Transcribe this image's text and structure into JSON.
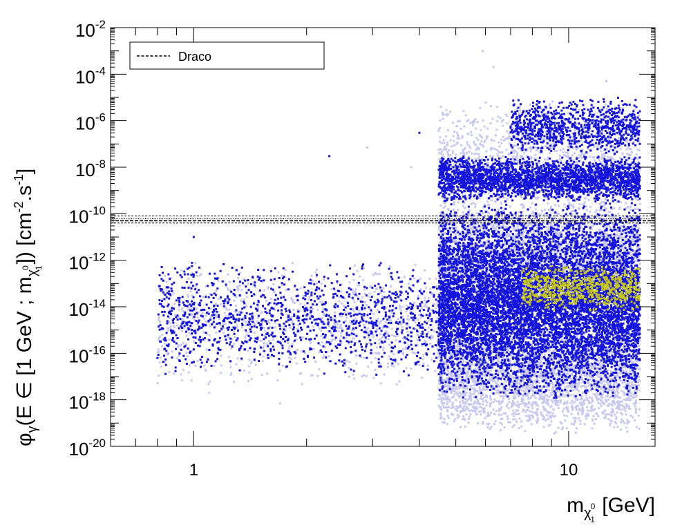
{
  "chart_data": {
    "type": "scatter",
    "xscale": "log",
    "yscale": "log",
    "xlim": [
      0.6,
      17
    ],
    "ylim": [
      1e-20,
      0.01
    ],
    "xticks": [
      {
        "value": 1,
        "label": "1"
      },
      {
        "value": 10,
        "label": "10"
      }
    ],
    "yticks": [
      {
        "value": 1e-20,
        "base": "10",
        "exp": "-20"
      },
      {
        "value": 1e-18,
        "base": "10",
        "exp": "-18"
      },
      {
        "value": 1e-16,
        "base": "10",
        "exp": "-16"
      },
      {
        "value": 1e-14,
        "base": "10",
        "exp": "-14"
      },
      {
        "value": 1e-12,
        "base": "10",
        "exp": "-12"
      },
      {
        "value": 1e-10,
        "base": "10",
        "exp": "-10"
      },
      {
        "value": 1e-08,
        "base": "10",
        "exp": "-8"
      },
      {
        "value": 1e-06,
        "base": "10",
        "exp": "-6"
      },
      {
        "value": 0.0001,
        "base": "10",
        "exp": "-4"
      },
      {
        "value": 0.01,
        "base": "10",
        "exp": "-2"
      }
    ],
    "xlabel": {
      "main": "m",
      "sub": "χ",
      "subsup": "0",
      "subsub": "1",
      "suffix": " [GeV]"
    },
    "ylabel": {
      "p1": "φ",
      "p1sub": "γ",
      "p2": "(E ∈ [1 GeV ; m",
      "p2sub": "χ",
      "p2subsup": "0",
      "p2subsub": "1",
      "p3": "]) [cm",
      "p3sup": "-2",
      "p4": ".s",
      "p4sup": "-1",
      "p5": "]"
    },
    "legend": {
      "position": "top-left",
      "entries": [
        {
          "label": "Draco",
          "style": "dashed-line"
        }
      ]
    },
    "reference_line": {
      "name": "Draco",
      "y_central": 5e-11,
      "y_band": [
        4e-11,
        8e-11
      ],
      "color": "#000000"
    },
    "series": [
      {
        "color": "#c8c8f0",
        "clusters": [
          {
            "x": [
              0.8,
              4.5
            ],
            "logy": [
              -17.5,
              -12.0
            ],
            "n": 900
          },
          {
            "x": [
              4.5,
              15.5
            ],
            "logy": [
              -19.5,
              -14.5
            ],
            "n": 3000
          },
          {
            "x": [
              4.5,
              15.5
            ],
            "logy": [
              -14.5,
              -9.0
            ],
            "n": 3000
          },
          {
            "x": [
              4.5,
              15.5
            ],
            "logy": [
              -9.5,
              -5.0
            ],
            "n": 900
          }
        ]
      },
      {
        "color": "#1414dc",
        "clusters": [
          {
            "x": [
              0.8,
              4.5
            ],
            "logy": [
              -17.0,
              -12.0
            ],
            "n": 1200
          },
          {
            "x": [
              4.5,
              15.5
            ],
            "logy": [
              -18.0,
              -9.5
            ],
            "n": 9000
          },
          {
            "x": [
              4.5,
              15.5
            ],
            "logy": [
              -9.5,
              -7.5
            ],
            "n": 2500
          },
          {
            "x": [
              7.0,
              15.5
            ],
            "logy": [
              -7.5,
              -5.0
            ],
            "n": 900
          }
        ]
      },
      {
        "color": "#c8c818",
        "clusters": [
          {
            "x": [
              7.5,
              15.5
            ],
            "logy": [
              -14.2,
              -12.2
            ],
            "n": 650
          }
        ]
      }
    ],
    "outliers": [
      {
        "x": 5.9,
        "y": 0.001,
        "color": "#c8c8f0"
      },
      {
        "x": 6.3,
        "y": 0.0002,
        "color": "#c8c8f0"
      },
      {
        "x": 12.6,
        "y": 5e-05,
        "color": "#c8c8f0"
      },
      {
        "x": 2.3,
        "y": 3e-08,
        "color": "#1414dc"
      },
      {
        "x": 2.9,
        "y": 7e-08,
        "color": "#c8c8f0"
      },
      {
        "x": 4.0,
        "y": 3e-07,
        "color": "#1414dc"
      },
      {
        "x": 3.8,
        "y": 1e-08,
        "color": "#c8c8f0"
      },
      {
        "x": 1.1,
        "y": 2e-18,
        "color": "#c8c8f0"
      },
      {
        "x": 1.7,
        "y": 7e-19,
        "color": "#c8c8f0"
      },
      {
        "x": 2.6,
        "y": 1e-17,
        "color": "#c8c8f0"
      },
      {
        "x": 0.85,
        "y": 1e-16,
        "color": "#c8c8f0"
      },
      {
        "x": 1.0,
        "y": 1e-11,
        "color": "#1414dc"
      }
    ]
  }
}
